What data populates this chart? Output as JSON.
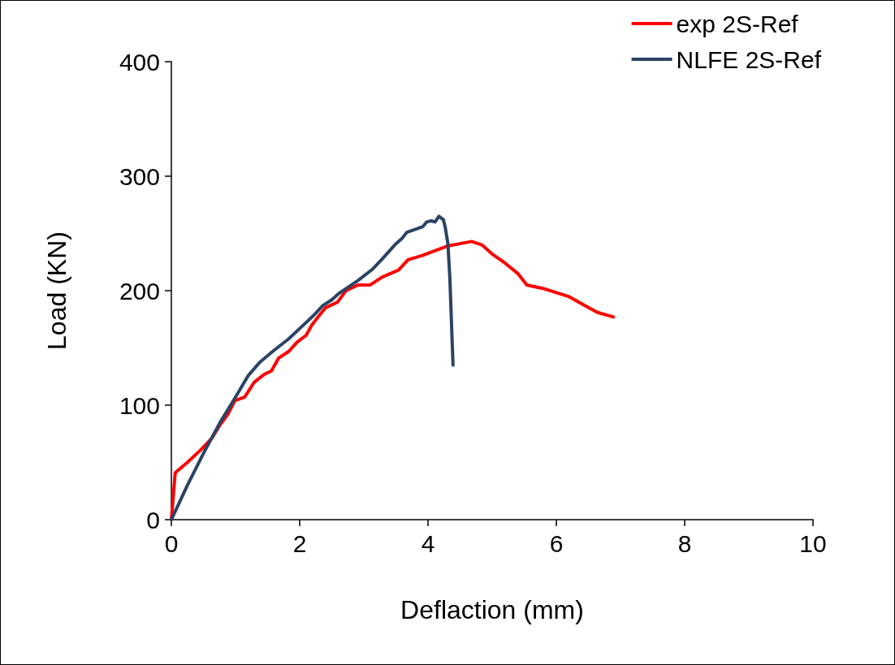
{
  "chart_data": {
    "type": "line",
    "xlabel": "Deflaction (mm)",
    "ylabel": "Load (KN)",
    "xlim": [
      0,
      10
    ],
    "xticks": [
      0,
      2,
      4,
      6,
      8,
      10
    ],
    "ylim": [
      0,
      400
    ],
    "yticks": [
      0,
      100,
      200,
      300,
      400
    ],
    "grid": false,
    "legend": "top right",
    "marker": "none",
    "line_style": "solid",
    "series": [
      {
        "name": "exp 2S-Ref",
        "color": "#ff0000",
        "x": [
          0,
          0.06,
          0.25,
          0.44,
          0.63,
          0.76,
          0.88,
          0.99,
          1.14,
          1.2,
          1.29,
          1.45,
          1.56,
          1.67,
          1.83,
          1.96,
          2.1,
          2.19,
          2.3,
          2.4,
          2.59,
          2.72,
          2.91,
          3.1,
          3.29,
          3.54,
          3.69,
          3.92,
          4.3,
          4.68,
          4.84,
          5.0,
          5.18,
          5.4,
          5.54,
          5.79,
          6.19,
          6.38,
          6.64,
          6.89
        ],
        "values": [
          0,
          41,
          50,
          60,
          71,
          83,
          92,
          104,
          107,
          112,
          120,
          127,
          130,
          141,
          147,
          155,
          161,
          170,
          178,
          185,
          190,
          200,
          205,
          205,
          212,
          218,
          227,
          231,
          239,
          243,
          240,
          232,
          225,
          215,
          205,
          202,
          195,
          189,
          181,
          177
        ]
      },
      {
        "name": "NLFE 2S-Ref",
        "color": "#2a4365",
        "x": [
          0,
          0.25,
          0.51,
          0.76,
          1.01,
          1.2,
          1.37,
          1.58,
          1.83,
          2.02,
          2.21,
          2.36,
          2.5,
          2.62,
          2.78,
          2.91,
          3.14,
          3.29,
          3.5,
          3.6,
          3.67,
          3.92,
          3.98,
          4.05,
          4.11,
          4.17,
          4.24,
          4.27,
          4.31,
          4.34,
          4.36,
          4.39
        ],
        "values": [
          0,
          30,
          59,
          85,
          108,
          126,
          137,
          147,
          158,
          168,
          178,
          187,
          192,
          198,
          204,
          209,
          219,
          228,
          241,
          246,
          251,
          256,
          260,
          261,
          260,
          265,
          262,
          255,
          241,
          212,
          181,
          135
        ]
      }
    ]
  }
}
